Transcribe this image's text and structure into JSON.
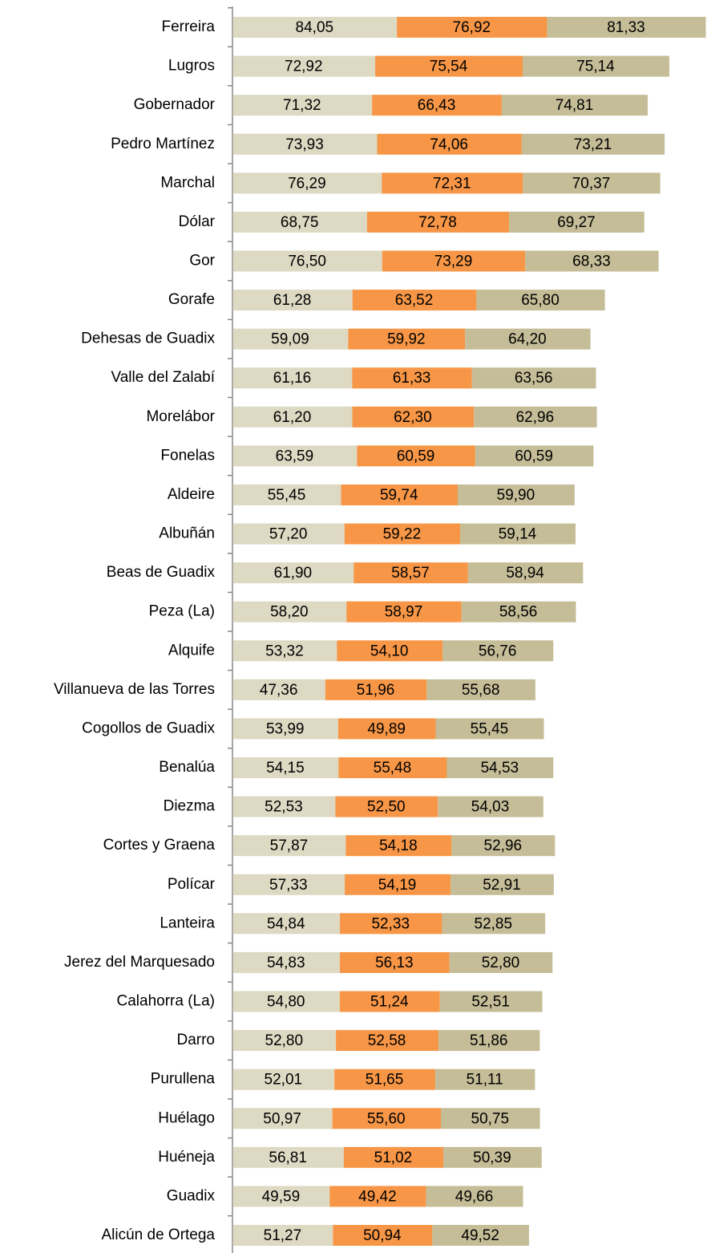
{
  "chart_data": {
    "type": "stacked-bar-horizontal",
    "categories": [
      "Ferreira",
      "Lugros",
      "Gobernador",
      "Pedro Martínez",
      "Marchal",
      "Dólar",
      "Gor",
      "Gorafe",
      "Dehesas de Guadix",
      "Valle del Zalabí",
      "Morelábor",
      "Fonelas",
      "Aldeire",
      "Albuñán",
      "Beas de Guadix",
      "Peza (La)",
      "Alquife",
      "Villanueva de las Torres",
      "Cogollos de Guadix",
      "Benalúa",
      "Diezma",
      "Cortes y Graena",
      "Polícar",
      "Lanteira",
      "Jerez del Marquesado",
      "Calahorra (La)",
      "Darro",
      "Purullena",
      "Huélago",
      "Huéneja",
      "Guadix",
      "Alicún de Ortega"
    ],
    "series": [
      {
        "color": "#ddd9c3",
        "values": [
          84.05,
          72.92,
          71.32,
          73.93,
          76.29,
          68.75,
          76.5,
          61.28,
          59.09,
          61.16,
          61.2,
          63.59,
          55.45,
          57.2,
          61.9,
          58.2,
          53.32,
          47.36,
          53.99,
          54.15,
          52.53,
          57.87,
          57.33,
          54.84,
          54.83,
          54.8,
          52.8,
          52.01,
          50.97,
          56.81,
          49.59,
          51.27
        ],
        "value_labels": [
          "84,05",
          "72,92",
          "71,32",
          "73,93",
          "76,29",
          "68,75",
          "76,50",
          "61,28",
          "59,09",
          "61,16",
          "61,20",
          "63,59",
          "55,45",
          "57,20",
          "61,90",
          "58,20",
          "53,32",
          "47,36",
          "53,99",
          "54,15",
          "52,53",
          "57,87",
          "57,33",
          "54,84",
          "54,83",
          "54,80",
          "52,80",
          "52,01",
          "50,97",
          "56,81",
          "49,59",
          "51,27"
        ]
      },
      {
        "color": "#f79646",
        "values": [
          76.92,
          75.54,
          66.43,
          74.06,
          72.31,
          72.78,
          73.29,
          63.52,
          59.92,
          61.33,
          62.3,
          60.59,
          59.74,
          59.22,
          58.57,
          58.97,
          54.1,
          51.96,
          49.89,
          55.48,
          52.5,
          54.18,
          54.19,
          52.33,
          56.13,
          51.24,
          52.58,
          51.65,
          55.6,
          51.02,
          49.42,
          50.94
        ],
        "value_labels": [
          "76,92",
          "75,54",
          "66,43",
          "74,06",
          "72,31",
          "72,78",
          "73,29",
          "63,52",
          "59,92",
          "61,33",
          "62,30",
          "60,59",
          "59,74",
          "59,22",
          "58,57",
          "58,97",
          "54,10",
          "51,96",
          "49,89",
          "55,48",
          "52,50",
          "54,18",
          "54,19",
          "52,33",
          "56,13",
          "51,24",
          "52,58",
          "51,65",
          "55,60",
          "51,02",
          "49,42",
          "50,94"
        ]
      },
      {
        "color": "#c4bd97",
        "values": [
          81.33,
          75.14,
          74.81,
          73.21,
          70.37,
          69.27,
          68.33,
          65.8,
          64.2,
          63.56,
          62.96,
          60.59,
          59.9,
          59.14,
          58.94,
          58.56,
          56.76,
          55.68,
          55.45,
          54.53,
          54.03,
          52.96,
          52.91,
          52.85,
          52.8,
          52.51,
          51.86,
          51.11,
          50.75,
          50.39,
          49.66,
          49.52
        ],
        "value_labels": [
          "81,33",
          "75,14",
          "74,81",
          "73,21",
          "70,37",
          "69,27",
          "68,33",
          "65,80",
          "64,20",
          "63,56",
          "62,96",
          "60,59",
          "59,90",
          "59,14",
          "58,94",
          "58,56",
          "56,76",
          "55,68",
          "55,45",
          "54,53",
          "54,03",
          "52,96",
          "52,91",
          "52,85",
          "52,80",
          "52,51",
          "51,86",
          "51,11",
          "50,75",
          "50,39",
          "49,66",
          "49,52"
        ]
      }
    ]
  }
}
